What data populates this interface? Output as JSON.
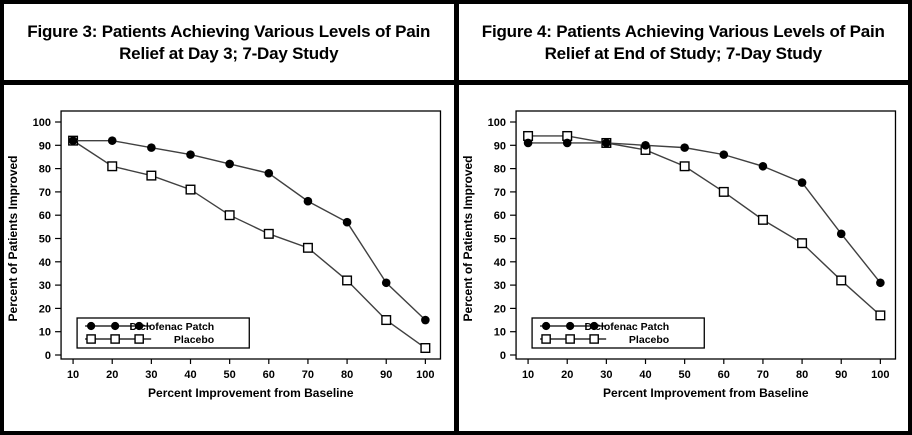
{
  "colors": {
    "background": "#ffffff",
    "border": "#000000",
    "line": "#404040",
    "marker": "#000000",
    "text": "#000000"
  },
  "chart_data": [
    {
      "type": "line",
      "figure_label": "Figure 3",
      "title_lines": [
        "Figure 3: Patients Achieving Various Levels of Pain",
        "Relief at Day 3; 7-Day Study"
      ],
      "xlabel": "Percent Improvement from Baseline",
      "ylabel": "Percent of Patients Improved",
      "x": [
        10,
        20,
        30,
        40,
        50,
        60,
        70,
        80,
        90,
        100
      ],
      "xlim": [
        10,
        100
      ],
      "ylim": [
        0,
        100
      ],
      "yticks": [
        0,
        10,
        20,
        30,
        40,
        50,
        60,
        70,
        80,
        90,
        100
      ],
      "grid": "off",
      "legend_position": "bottom-left",
      "series": [
        {
          "name": "Diclofenac Patch",
          "marker": "filled-circle",
          "values": [
            92,
            92,
            89,
            86,
            82,
            78,
            66,
            57,
            31,
            15
          ]
        },
        {
          "name": "Placebo",
          "marker": "open-square",
          "values": [
            92,
            81,
            77,
            71,
            60,
            52,
            46,
            32,
            15,
            3
          ]
        }
      ]
    },
    {
      "type": "line",
      "figure_label": "Figure 4",
      "title_lines": [
        "Figure 4: Patients Achieving Various Levels of Pain",
        "Relief at End of Study; 7-Day Study"
      ],
      "xlabel": "Percent Improvement from Baseline",
      "ylabel": "Percent of Patients Improved",
      "x": [
        10,
        20,
        30,
        40,
        50,
        60,
        70,
        80,
        90,
        100
      ],
      "xlim": [
        10,
        100
      ],
      "ylim": [
        0,
        100
      ],
      "yticks": [
        0,
        10,
        20,
        30,
        40,
        50,
        60,
        70,
        80,
        90,
        100
      ],
      "grid": "off",
      "legend_position": "bottom-left",
      "series": [
        {
          "name": "Diclofenac Patch",
          "marker": "filled-circle",
          "values": [
            91,
            91,
            91,
            90,
            89,
            86,
            81,
            74,
            52,
            31
          ]
        },
        {
          "name": "Placebo",
          "marker": "open-square",
          "values": [
            94,
            94,
            91,
            88,
            81,
            70,
            58,
            48,
            32,
            17
          ]
        }
      ]
    }
  ]
}
